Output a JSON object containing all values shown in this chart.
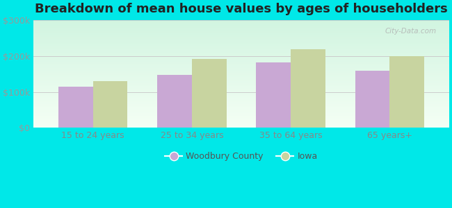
{
  "title": "Breakdown of mean house values by ages of householders",
  "categories": [
    "15 to 24 years",
    "25 to 34 years",
    "35 to 64 years",
    "65 years+"
  ],
  "woodbury_values": [
    115000,
    148000,
    182000,
    160000
  ],
  "iowa_values": [
    130000,
    193000,
    220000,
    200000
  ],
  "woodbury_color": "#c9a8d4",
  "iowa_color": "#c8d4a0",
  "ylim": [
    0,
    300000
  ],
  "yticks": [
    0,
    100000,
    200000,
    300000
  ],
  "ytick_labels": [
    "$0",
    "$100k",
    "$200k",
    "$300k"
  ],
  "background_color": "#00e8e8",
  "title_fontsize": 13,
  "legend_labels": [
    "Woodbury County",
    "Iowa"
  ],
  "watermark": "City-Data.com",
  "bar_width": 0.35
}
